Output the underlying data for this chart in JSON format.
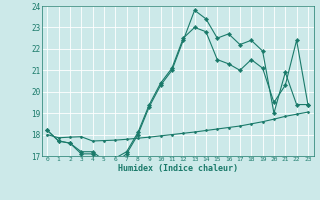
{
  "xlabel": "Humidex (Indice chaleur)",
  "xlim": [
    -0.5,
    23.5
  ],
  "ylim": [
    17,
    24
  ],
  "yticks": [
    17,
    18,
    19,
    20,
    21,
    22,
    23,
    24
  ],
  "xticks": [
    0,
    1,
    2,
    3,
    4,
    5,
    6,
    7,
    8,
    9,
    10,
    11,
    12,
    13,
    14,
    15,
    16,
    17,
    18,
    19,
    20,
    21,
    22,
    23
  ],
  "bg_color": "#cce9e9",
  "grid_color": "#b0d8d8",
  "line_color": "#1a7a6a",
  "curve1_x": [
    0,
    1,
    2,
    3,
    4,
    5,
    6,
    7,
    8,
    9,
    10,
    11,
    12,
    13,
    14,
    15,
    16,
    17,
    18,
    19,
    20,
    21,
    22,
    23
  ],
  "curve1_y": [
    18.2,
    17.7,
    17.6,
    17.1,
    17.1,
    16.7,
    16.7,
    17.1,
    18.0,
    19.3,
    20.3,
    21.0,
    22.4,
    23.8,
    23.4,
    22.5,
    22.7,
    22.2,
    22.4,
    21.9,
    19.0,
    20.9,
    19.4,
    19.4
  ],
  "curve2_x": [
    0,
    1,
    2,
    3,
    4,
    5,
    6,
    7,
    8,
    9,
    10,
    11,
    12,
    13,
    14,
    15,
    16,
    17,
    18,
    19,
    20,
    21,
    22,
    23
  ],
  "curve2_y": [
    18.2,
    17.7,
    17.6,
    17.2,
    17.2,
    16.8,
    16.9,
    17.2,
    18.1,
    19.4,
    20.4,
    21.1,
    22.5,
    23.0,
    22.8,
    21.5,
    21.3,
    21.0,
    21.5,
    21.1,
    19.5,
    20.3,
    22.4,
    19.4
  ],
  "curve3_x": [
    0,
    1,
    2,
    3,
    4,
    5,
    6,
    7,
    8,
    9,
    10,
    11,
    12,
    13,
    14,
    15,
    16,
    17,
    18,
    19,
    20,
    21,
    22,
    23
  ],
  "curve3_y": [
    18.0,
    17.85,
    17.88,
    17.9,
    17.7,
    17.72,
    17.74,
    17.78,
    17.83,
    17.88,
    17.94,
    18.0,
    18.06,
    18.12,
    18.19,
    18.26,
    18.33,
    18.4,
    18.5,
    18.6,
    18.72,
    18.85,
    18.95,
    19.05
  ]
}
